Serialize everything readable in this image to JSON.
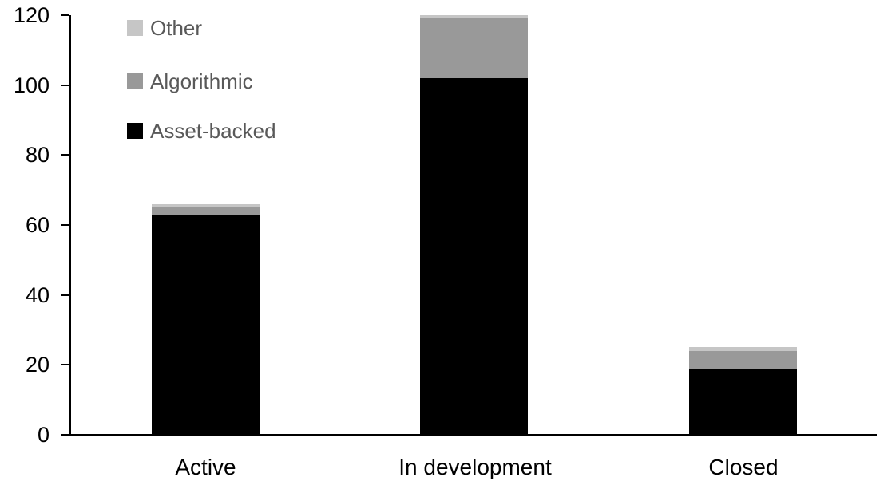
{
  "chart_data": {
    "type": "bar",
    "stacked": true,
    "title": "",
    "xlabel": "",
    "ylabel": "",
    "categories": [
      "Active",
      "In development",
      "Closed"
    ],
    "series": [
      {
        "name": "Asset-backed",
        "color": "#000000",
        "values": [
          63,
          102,
          19
        ]
      },
      {
        "name": "Algorithmic",
        "color": "#999999",
        "values": [
          2,
          17,
          5
        ]
      },
      {
        "name": "Other",
        "color": "#c6c6c6",
        "values": [
          1,
          1,
          1
        ]
      }
    ],
    "totals": [
      66,
      120,
      25
    ],
    "ylim": [
      0,
      120
    ],
    "yticks": [
      0,
      20,
      40,
      60,
      80,
      100,
      120
    ],
    "grid": false,
    "legend_position": "top-left-inside",
    "legend_order": [
      "Other",
      "Algorithmic",
      "Asset-backed"
    ],
    "axis_color": "#000000",
    "legend_text_color": "#595959",
    "background_color": "#ffffff"
  }
}
